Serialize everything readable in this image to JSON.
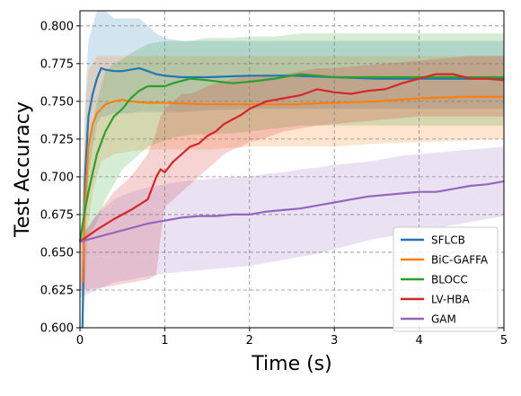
{
  "chart_data": {
    "type": "line",
    "xlabel": "Time (s)",
    "ylabel": "Test Accuracy",
    "xlim": [
      0,
      5
    ],
    "ylim": [
      0.6,
      0.81
    ],
    "x_ticks": [
      0,
      1,
      2,
      3,
      4,
      5
    ],
    "y_ticks": [
      0.6,
      0.625,
      0.65,
      0.675,
      0.7,
      0.725,
      0.75,
      0.775,
      0.8
    ],
    "x_tick_labels": [
      "0",
      "1",
      "2",
      "3",
      "4",
      "5"
    ],
    "y_tick_labels": [
      "0.600",
      "0.625",
      "0.650",
      "0.675",
      "0.700",
      "0.725",
      "0.750",
      "0.775",
      "0.800"
    ],
    "grid": true,
    "legend_position": "lower-right",
    "series": [
      {
        "name": "SFLCB",
        "color": "#1f77b4",
        "x": [
          0.03,
          0.06,
          0.1,
          0.15,
          0.2,
          0.25,
          0.3,
          0.4,
          0.5,
          0.6,
          0.7,
          0.8,
          0.9,
          1.0,
          1.2,
          1.5,
          2.0,
          2.5,
          3.0,
          3.5,
          4.0,
          4.5,
          5.0
        ],
        "y": [
          0.6,
          0.7,
          0.74,
          0.755,
          0.765,
          0.772,
          0.771,
          0.77,
          0.77,
          0.771,
          0.772,
          0.77,
          0.768,
          0.767,
          0.766,
          0.766,
          0.767,
          0.767,
          0.766,
          0.765,
          0.765,
          0.765,
          0.765
        ],
        "band_upper": [
          0.66,
          0.75,
          0.79,
          0.8,
          0.81,
          0.81,
          0.81,
          0.805,
          0.805,
          0.805,
          0.805,
          0.8,
          0.795,
          0.792,
          0.79,
          0.79,
          0.79,
          0.79,
          0.79,
          0.79,
          0.79,
          0.79,
          0.79
        ],
        "band_lower": [
          0.6,
          0.66,
          0.7,
          0.72,
          0.735,
          0.74,
          0.74,
          0.742,
          0.742,
          0.742,
          0.743,
          0.743,
          0.743,
          0.743,
          0.743,
          0.744,
          0.745,
          0.745,
          0.745,
          0.745,
          0.745,
          0.745,
          0.745
        ]
      },
      {
        "name": "BiC-GAFFA",
        "color": "#ff7f0e",
        "x": [
          0.03,
          0.06,
          0.1,
          0.15,
          0.2,
          0.25,
          0.3,
          0.4,
          0.5,
          0.6,
          0.8,
          1.0,
          1.5,
          2.0,
          2.5,
          3.0,
          3.5,
          4.0,
          4.5,
          5.0
        ],
        "y": [
          0.63,
          0.68,
          0.72,
          0.735,
          0.742,
          0.745,
          0.748,
          0.75,
          0.751,
          0.75,
          0.749,
          0.749,
          0.748,
          0.748,
          0.748,
          0.749,
          0.75,
          0.752,
          0.753,
          0.753
        ],
        "band_upper": [
          0.7,
          0.74,
          0.77,
          0.775,
          0.78,
          0.78,
          0.78,
          0.78,
          0.78,
          0.78,
          0.78,
          0.78,
          0.78,
          0.78,
          0.78,
          0.78,
          0.78,
          0.78,
          0.78,
          0.78
        ],
        "band_lower": [
          0.6,
          0.62,
          0.67,
          0.69,
          0.7,
          0.71,
          0.712,
          0.715,
          0.716,
          0.717,
          0.718,
          0.718,
          0.718,
          0.72,
          0.72,
          0.72,
          0.722,
          0.723,
          0.724,
          0.725
        ]
      },
      {
        "name": "BLOCC",
        "color": "#2ca02c",
        "x": [
          0.0,
          0.05,
          0.1,
          0.2,
          0.3,
          0.4,
          0.5,
          0.6,
          0.7,
          0.8,
          0.9,
          1.0,
          1.1,
          1.3,
          1.5,
          1.8,
          2.0,
          2.3,
          2.6,
          3.0,
          3.5,
          4.0,
          4.5,
          5.0
        ],
        "y": [
          0.657,
          0.675,
          0.69,
          0.715,
          0.73,
          0.74,
          0.745,
          0.752,
          0.757,
          0.76,
          0.76,
          0.76,
          0.762,
          0.765,
          0.764,
          0.762,
          0.763,
          0.765,
          0.768,
          0.766,
          0.766,
          0.766,
          0.766,
          0.766
        ],
        "band_upper": [
          0.66,
          0.7,
          0.72,
          0.75,
          0.77,
          0.775,
          0.778,
          0.782,
          0.785,
          0.788,
          0.789,
          0.79,
          0.79,
          0.79,
          0.792,
          0.792,
          0.793,
          0.793,
          0.795,
          0.795,
          0.795,
          0.795,
          0.795,
          0.795
        ],
        "band_lower": [
          0.655,
          0.66,
          0.66,
          0.67,
          0.685,
          0.695,
          0.705,
          0.71,
          0.715,
          0.72,
          0.722,
          0.724,
          0.726,
          0.728,
          0.728,
          0.729,
          0.73,
          0.732,
          0.734,
          0.734,
          0.734,
          0.734,
          0.734,
          0.734
        ]
      },
      {
        "name": "LV-HBA",
        "color": "#d62728",
        "x": [
          0.0,
          0.2,
          0.4,
          0.6,
          0.8,
          0.9,
          0.95,
          1.0,
          1.1,
          1.2,
          1.3,
          1.4,
          1.5,
          1.6,
          1.7,
          1.8,
          1.9,
          2.0,
          2.2,
          2.4,
          2.6,
          2.8,
          3.0,
          3.2,
          3.4,
          3.6,
          3.8,
          4.0,
          4.2,
          4.4,
          4.6,
          4.8,
          5.0
        ],
        "y": [
          0.657,
          0.665,
          0.672,
          0.678,
          0.685,
          0.7,
          0.705,
          0.703,
          0.71,
          0.715,
          0.72,
          0.722,
          0.727,
          0.73,
          0.735,
          0.738,
          0.741,
          0.745,
          0.75,
          0.752,
          0.754,
          0.758,
          0.756,
          0.755,
          0.757,
          0.758,
          0.762,
          0.765,
          0.768,
          0.768,
          0.765,
          0.765,
          0.764
        ],
        "band_upper": [
          0.658,
          0.675,
          0.69,
          0.7,
          0.715,
          0.73,
          0.74,
          0.745,
          0.75,
          0.755,
          0.755,
          0.757,
          0.76,
          0.762,
          0.763,
          0.765,
          0.766,
          0.767,
          0.768,
          0.768,
          0.77,
          0.772,
          0.772,
          0.773,
          0.774,
          0.775,
          0.776,
          0.777,
          0.778,
          0.779,
          0.78,
          0.78,
          0.78
        ],
        "band_lower": [
          0.625,
          0.626,
          0.628,
          0.63,
          0.632,
          0.635,
          0.66,
          0.68,
          0.685,
          0.69,
          0.695,
          0.7,
          0.705,
          0.71,
          0.715,
          0.718,
          0.72,
          0.723,
          0.726,
          0.73,
          0.732,
          0.734,
          0.735,
          0.736,
          0.737,
          0.738,
          0.739,
          0.74,
          0.74,
          0.74,
          0.74,
          0.74,
          0.74
        ]
      },
      {
        "name": "GAM",
        "color": "#9467bd",
        "x": [
          0.0,
          0.2,
          0.4,
          0.6,
          0.8,
          1.0,
          1.2,
          1.4,
          1.6,
          1.8,
          2.0,
          2.2,
          2.4,
          2.6,
          2.8,
          3.0,
          3.2,
          3.4,
          3.6,
          3.8,
          4.0,
          4.2,
          4.4,
          4.6,
          4.8,
          5.0
        ],
        "y": [
          0.657,
          0.66,
          0.663,
          0.666,
          0.669,
          0.671,
          0.673,
          0.674,
          0.674,
          0.675,
          0.675,
          0.677,
          0.678,
          0.679,
          0.681,
          0.683,
          0.685,
          0.687,
          0.688,
          0.689,
          0.69,
          0.69,
          0.692,
          0.694,
          0.695,
          0.697
        ],
        "band_upper": [
          0.66,
          0.675,
          0.685,
          0.69,
          0.693,
          0.695,
          0.697,
          0.698,
          0.699,
          0.7,
          0.7,
          0.702,
          0.703,
          0.705,
          0.706,
          0.708,
          0.709,
          0.71,
          0.712,
          0.714,
          0.715,
          0.716,
          0.717,
          0.718,
          0.719,
          0.72
        ],
        "band_lower": [
          0.62,
          0.625,
          0.63,
          0.632,
          0.634,
          0.636,
          0.637,
          0.638,
          0.639,
          0.64,
          0.641,
          0.643,
          0.645,
          0.647,
          0.649,
          0.652,
          0.655,
          0.658,
          0.66,
          0.662,
          0.664,
          0.666,
          0.668,
          0.67,
          0.672,
          0.674
        ]
      }
    ]
  }
}
